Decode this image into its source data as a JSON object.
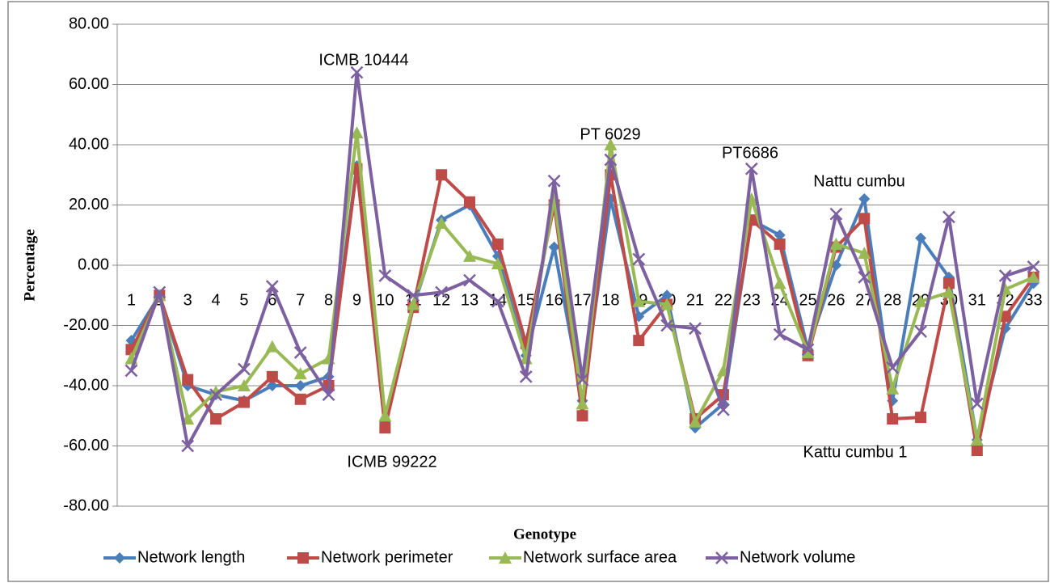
{
  "chart_data": {
    "type": "line",
    "x_label": "Genotype",
    "y_label": "Percentage",
    "categories": [
      "1",
      "2",
      "3",
      "4",
      "5",
      "6",
      "7",
      "8",
      "9",
      "10",
      "11",
      "12",
      "13",
      "14",
      "15",
      "16",
      "17",
      "18",
      "19",
      "20",
      "21",
      "22",
      "23",
      "24",
      "25",
      "26",
      "27",
      "28",
      "29",
      "30",
      "31",
      "32",
      "33"
    ],
    "ylim": [
      -80,
      80
    ],
    "yticks": [
      {
        "value": -80,
        "label": "-80.00"
      },
      {
        "value": -60,
        "label": "-60.00"
      },
      {
        "value": -40,
        "label": "-40.00"
      },
      {
        "value": -20,
        "label": "-20.00"
      },
      {
        "value": 0,
        "label": "0.00"
      },
      {
        "value": 20,
        "label": "20.00"
      },
      {
        "value": 40,
        "label": "40.00"
      },
      {
        "value": 60,
        "label": "60.00"
      },
      {
        "value": 80,
        "label": "80.00"
      }
    ],
    "grid": true,
    "legend": "bottom",
    "annotations": [
      "ICMB 10444",
      "ICMB 99222",
      "PT 6029",
      "PT6686",
      "Nattu cumbu",
      "Kattu cumbu 1"
    ],
    "series": [
      {
        "name": "Network length",
        "color": "#4a7ebb",
        "values": [
          -25,
          -10,
          -40,
          -43,
          -45,
          -40,
          -40,
          -37,
          33,
          -52,
          -14,
          15,
          20,
          3,
          -30,
          6,
          -45,
          22,
          -17,
          -10,
          -54,
          -46,
          15,
          10,
          -28,
          0,
          22,
          -45,
          9,
          -4,
          -58,
          -21,
          -6
        ]
      },
      {
        "name": "Network perimeter",
        "color": "#be4b48",
        "values": [
          -28,
          -10,
          -38,
          -51,
          -45.5,
          -37,
          -44.5,
          -40,
          32,
          -54,
          -14,
          30,
          21,
          7,
          -26,
          20,
          -50,
          30,
          -25,
          -13,
          -51,
          -43,
          15,
          7,
          -30,
          6,
          15.5,
          -51,
          -50.5,
          -6,
          -61.5,
          -17,
          -4
        ]
      },
      {
        "name": "Network surface area",
        "color": "#98b954",
        "values": [
          -31,
          -10,
          -51,
          -42,
          -40,
          -27,
          -36,
          -31,
          44,
          -50,
          -13,
          14,
          3,
          0.5,
          -31,
          22,
          -46,
          40,
          -12,
          -13,
          -52,
          -35,
          22,
          -6,
          -29,
          7,
          4,
          -41,
          -12,
          -9,
          -58,
          -8,
          -4
        ]
      },
      {
        "name": "Network volume",
        "color": "#7d60a0",
        "values": [
          -35,
          -9,
          -60,
          -43,
          -34.5,
          -7,
          -29,
          -43,
          64,
          -3.5,
          -10,
          -9,
          -5,
          -12,
          -37,
          28,
          -38,
          35,
          2,
          -20,
          -21,
          -48,
          32,
          -23,
          -28,
          17,
          -4,
          -34,
          -22,
          16,
          -46,
          -3.5,
          -0.5
        ]
      }
    ]
  }
}
